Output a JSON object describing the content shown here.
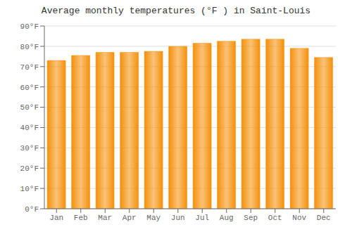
{
  "chart_data": {
    "type": "bar",
    "title": "Average monthly temperatures (°F ) in Saint-Louis",
    "categories": [
      "Jan",
      "Feb",
      "Mar",
      "Apr",
      "May",
      "Jun",
      "Jul",
      "Aug",
      "Sep",
      "Oct",
      "Nov",
      "Dec"
    ],
    "values": [
      73,
      75.5,
      77,
      77,
      77.5,
      80,
      81.5,
      82.5,
      83.5,
      83.5,
      79,
      74.5
    ],
    "color": "#F5900A",
    "ylim": [
      0,
      90
    ],
    "yticks": [
      {
        "value": 0,
        "label": "0°F"
      },
      {
        "value": 10,
        "label": "10°F"
      },
      {
        "value": 20,
        "label": "20°F"
      },
      {
        "value": 30,
        "label": "30°F"
      },
      {
        "value": 40,
        "label": "40°F"
      },
      {
        "value": 50,
        "label": "50°F"
      },
      {
        "value": 60,
        "label": "60°F"
      },
      {
        "value": 70,
        "label": "70°F"
      },
      {
        "value": 80,
        "label": "80°F"
      },
      {
        "value": 90,
        "label": "90°F"
      }
    ],
    "grid": true
  }
}
